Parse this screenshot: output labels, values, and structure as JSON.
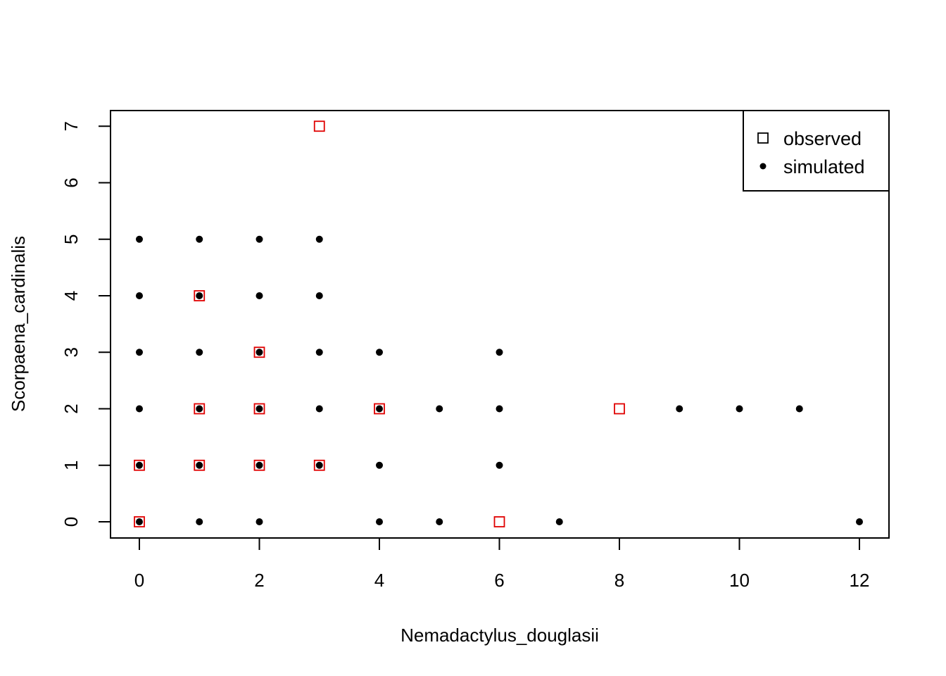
{
  "chart_data": {
    "type": "scatter",
    "title": "",
    "xlabel": "Nemadactylus_douglasii",
    "ylabel": "Scorpaena_cardinalis",
    "xlim": [
      0,
      12
    ],
    "ylim": [
      0,
      7
    ],
    "x_ticks": [
      0,
      2,
      4,
      6,
      8,
      10,
      12
    ],
    "y_ticks": [
      0,
      1,
      2,
      3,
      4,
      5,
      6,
      7
    ],
    "grid": false,
    "legend_position": "top-right",
    "colors": {
      "observed": "#e00000",
      "simulated": "#000000"
    },
    "series": [
      {
        "name": "observed",
        "marker": "open-square",
        "points": [
          [
            0,
            0
          ],
          [
            0,
            1
          ],
          [
            1,
            1
          ],
          [
            1,
            2
          ],
          [
            1,
            4
          ],
          [
            2,
            1
          ],
          [
            2,
            2
          ],
          [
            2,
            3
          ],
          [
            3,
            1
          ],
          [
            3,
            7
          ],
          [
            4,
            2
          ],
          [
            6,
            0
          ],
          [
            8,
            2
          ]
        ]
      },
      {
        "name": "simulated",
        "marker": "filled-circle",
        "points": [
          [
            0,
            0
          ],
          [
            0,
            1
          ],
          [
            0,
            2
          ],
          [
            0,
            3
          ],
          [
            0,
            4
          ],
          [
            0,
            5
          ],
          [
            1,
            0
          ],
          [
            1,
            1
          ],
          [
            1,
            2
          ],
          [
            1,
            3
          ],
          [
            1,
            4
          ],
          [
            1,
            5
          ],
          [
            2,
            0
          ],
          [
            2,
            1
          ],
          [
            2,
            2
          ],
          [
            2,
            3
          ],
          [
            2,
            4
          ],
          [
            2,
            5
          ],
          [
            3,
            1
          ],
          [
            3,
            2
          ],
          [
            3,
            3
          ],
          [
            3,
            4
          ],
          [
            3,
            5
          ],
          [
            4,
            0
          ],
          [
            4,
            1
          ],
          [
            4,
            2
          ],
          [
            4,
            3
          ],
          [
            5,
            0
          ],
          [
            5,
            2
          ],
          [
            6,
            1
          ],
          [
            6,
            2
          ],
          [
            6,
            3
          ],
          [
            7,
            0
          ],
          [
            9,
            2
          ],
          [
            10,
            2
          ],
          [
            11,
            2
          ],
          [
            12,
            0
          ]
        ]
      }
    ]
  }
}
